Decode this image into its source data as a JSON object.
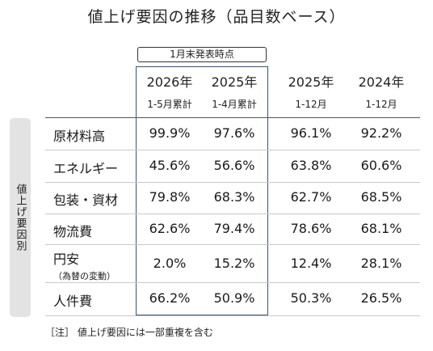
{
  "title": "値上げ要因の推移（品目数ベース）",
  "note_box": "1月末発表時点",
  "side_label": "値上げ要因別",
  "columns": [
    {
      "year": "2026年",
      "range": "1-5月累計"
    },
    {
      "year": "2025年",
      "range": "1-4月累計"
    },
    {
      "year": "2025年",
      "range": "1-12月"
    },
    {
      "year": "2024年",
      "range": "1-12月"
    }
  ],
  "rows": [
    {
      "label": "原材料高",
      "sub": "",
      "values": [
        "99.9%",
        "97.6%",
        "96.1%",
        "92.2%"
      ]
    },
    {
      "label": "エネルギー",
      "sub": "",
      "values": [
        "45.6%",
        "56.6%",
        "63.8%",
        "60.6%"
      ]
    },
    {
      "label": "包装・資材",
      "sub": "",
      "values": [
        "79.8%",
        "68.3%",
        "62.7%",
        "68.5%"
      ]
    },
    {
      "label": "物流費",
      "sub": "",
      "values": [
        "62.6%",
        "79.4%",
        "78.6%",
        "68.1%"
      ]
    },
    {
      "label": "円安",
      "sub": "（為替の変動）",
      "values": [
        "2.0%",
        "15.2%",
        "12.4%",
        "28.1%"
      ]
    },
    {
      "label": "人件費",
      "sub": "",
      "values": [
        "66.2%",
        "50.9%",
        "50.3%",
        "26.5%"
      ]
    }
  ],
  "footnote": "［注］ 値上げ要因には一部重複を含む",
  "colors": {
    "highlight_border": "#3a5472",
    "side_bg": "#e3e3e3"
  }
}
